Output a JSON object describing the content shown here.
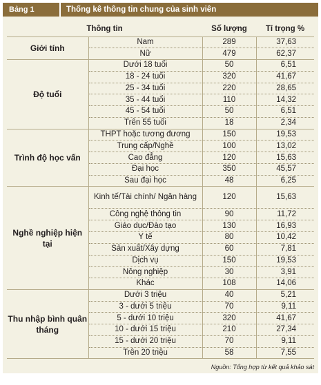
{
  "header": {
    "label": "Bảng 1",
    "title": "Thống kê thông tin chung của sinh viên"
  },
  "columns": [
    "Thông tin",
    "Số lượng",
    "Tỉ trọng %"
  ],
  "groups": [
    {
      "name": "Giới tính",
      "rows": [
        {
          "label": "Nam",
          "count": "289",
          "pct": "37,63"
        },
        {
          "label": "Nữ",
          "count": "479",
          "pct": "62,37"
        }
      ]
    },
    {
      "name": "Độ tuổi",
      "rows": [
        {
          "label": "Dưới 18 tuổi",
          "count": "50",
          "pct": "6,51"
        },
        {
          "label": "18 - 24 tuổi",
          "count": "320",
          "pct": "41,67"
        },
        {
          "label": "25 - 34 tuổi",
          "count": "220",
          "pct": "28,65"
        },
        {
          "label": "35 - 44 tuổi",
          "count": "110",
          "pct": "14,32"
        },
        {
          "label": "45 - 54 tuổi",
          "count": "50",
          "pct": "6,51"
        },
        {
          "label": "Trên 55 tuổi",
          "count": "18",
          "pct": "2,34"
        }
      ]
    },
    {
      "name": "Trình độ học vấn",
      "rows": [
        {
          "label": "THPT hoặc tương đương",
          "count": "150",
          "pct": "19,53"
        },
        {
          "label": "Trung cấp/Nghề",
          "count": "100",
          "pct": "13,02"
        },
        {
          "label": "Cao đẳng",
          "count": "120",
          "pct": "15,63"
        },
        {
          "label": "Đại học",
          "count": "350",
          "pct": "45,57"
        },
        {
          "label": "Sau đại học",
          "count": "48",
          "pct": "6,25"
        }
      ]
    },
    {
      "name": "Nghề nghiệp hiện tại",
      "rows": [
        {
          "label": "Kinh tế/Tài chính/ Ngân hàng",
          "count": "120",
          "pct": "15,63",
          "tall": true
        },
        {
          "label": "Công nghệ thông tin",
          "count": "90",
          "pct": "11,72"
        },
        {
          "label": "Giáo dục/Đào tạo",
          "count": "130",
          "pct": "16,93"
        },
        {
          "label": "Y tế",
          "count": "80",
          "pct": "10,42"
        },
        {
          "label": "Sản xuất/Xây dựng",
          "count": "60",
          "pct": "7,81"
        },
        {
          "label": "Dịch vụ",
          "count": "150",
          "pct": "19,53"
        },
        {
          "label": "Nông nghiệp",
          "count": "30",
          "pct": "3,91"
        },
        {
          "label": "Khác",
          "count": "108",
          "pct": "14,06"
        }
      ]
    },
    {
      "name": "Thu nhập bình quân tháng",
      "rows": [
        {
          "label": "Dưới 3 triệu",
          "count": "40",
          "pct": "5,21"
        },
        {
          "label": "3 - dưới 5 triệu",
          "count": "70",
          "pct": "9,11"
        },
        {
          "label": "5 - dưới 10 triệu",
          "count": "320",
          "pct": "41,67"
        },
        {
          "label": "10 - dưới 15 triệu",
          "count": "210",
          "pct": "27,34"
        },
        {
          "label": "15 - dưới 20 triệu",
          "count": "70",
          "pct": "9,11"
        },
        {
          "label": "Trên 20 triệu",
          "count": "58",
          "pct": "7,55"
        }
      ]
    }
  ],
  "source": "Nguồn: Tổng hợp từ kết quả khảo sát"
}
